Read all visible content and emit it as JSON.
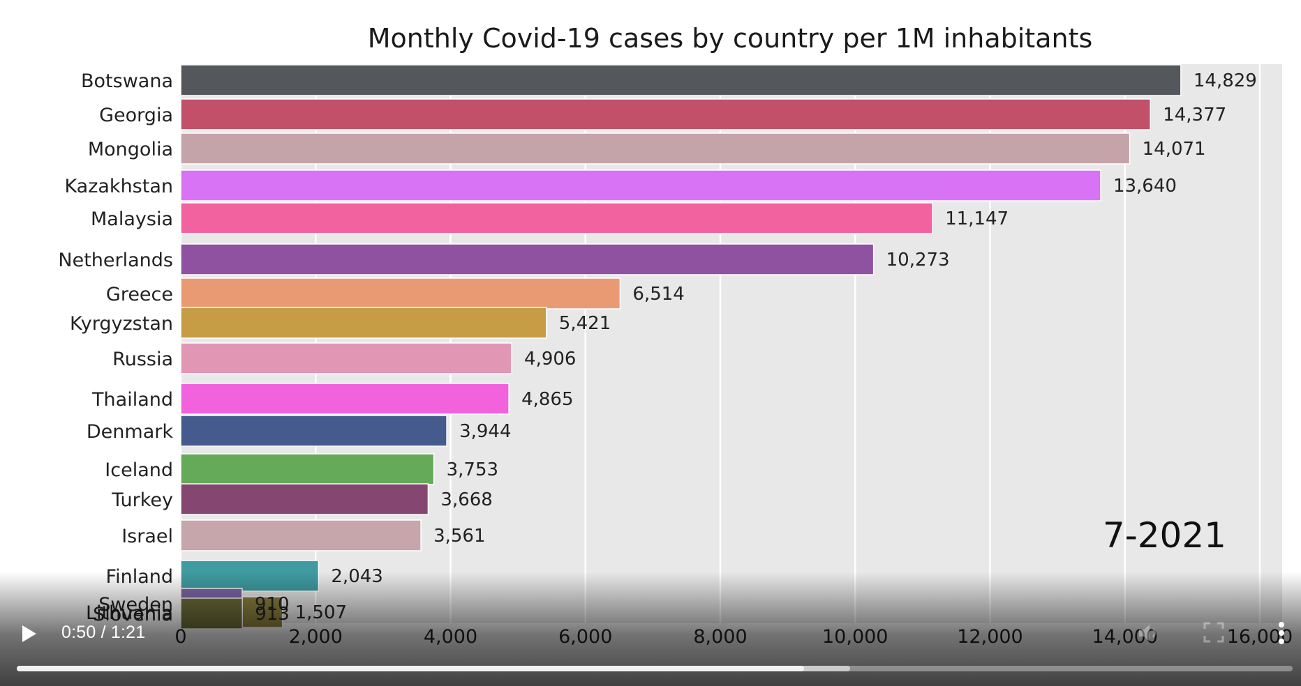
{
  "chart_data": {
    "type": "bar",
    "orientation": "horizontal",
    "title": "Monthly Covid-19 cases by country per 1M inhabitants",
    "period_label": "7-2021",
    "xlim": [
      0,
      16000
    ],
    "x_ticks": [
      0,
      2000,
      4000,
      6000,
      8000,
      10000,
      12000,
      14000,
      16000
    ],
    "x_tick_labels": [
      "0",
      "2,000",
      "4,000",
      "6,000",
      "8,000",
      "10,000",
      "12,000",
      "14,000",
      "16,000"
    ],
    "grid": true,
    "series": [
      {
        "country": "Botswana",
        "value": 14829,
        "label": "14,829",
        "color": "#54575c"
      },
      {
        "country": "Georgia",
        "value": 14377,
        "label": "14,377",
        "color": "#c15068"
      },
      {
        "country": "Mongolia",
        "value": 14071,
        "label": "14,071",
        "color": "#c4a4a9"
      },
      {
        "country": "Kazakhstan",
        "value": 13640,
        "label": "13,640",
        "color": "#d873f6"
      },
      {
        "country": "Malaysia",
        "value": 11147,
        "label": "11,147",
        "color": "#f1629e"
      },
      {
        "country": "Netherlands",
        "value": 10273,
        "label": "10,273",
        "color": "#8f52a0"
      },
      {
        "country": "Greece",
        "value": 6514,
        "label": "6,514",
        "color": "#e99a73"
      },
      {
        "country": "Kyrgyzstan",
        "value": 5421,
        "label": "5,421",
        "color": "#c69d45"
      },
      {
        "country": "Russia",
        "value": 4906,
        "label": "4,906",
        "color": "#e196b4"
      },
      {
        "country": "Thailand",
        "value": 4865,
        "label": "4,865",
        "color": "#f162dc"
      },
      {
        "country": "Denmark",
        "value": 3944,
        "label": "3,944",
        "color": "#465b8d"
      },
      {
        "country": "Iceland",
        "value": 3753,
        "label": "3,753",
        "color": "#65aa59"
      },
      {
        "country": "Turkey",
        "value": 3668,
        "label": "3,668",
        "color": "#854771"
      },
      {
        "country": "Israel",
        "value": 3561,
        "label": "3,561",
        "color": "#c6a5ab"
      },
      {
        "country": "Finland",
        "value": 2043,
        "label": "2,043",
        "color": "#3f9ba0"
      },
      {
        "country": "Lithuania",
        "value": 1507,
        "label": "1,507",
        "color": "#8b7f3e"
      },
      {
        "country": "Sweden",
        "value": 910,
        "label": "910",
        "color": "#7e66a8"
      },
      {
        "country": "Slovenia",
        "value": 913,
        "label": "913",
        "color": "#6b6b3a"
      }
    ]
  },
  "player": {
    "current_time": "0:50",
    "separator": " / ",
    "duration": "1:21",
    "progress_fraction": 0.617,
    "buffered_fraction": 0.653,
    "icons": [
      "play-icon",
      "volume-icon",
      "fullscreen-icon",
      "more-options-icon"
    ]
  }
}
